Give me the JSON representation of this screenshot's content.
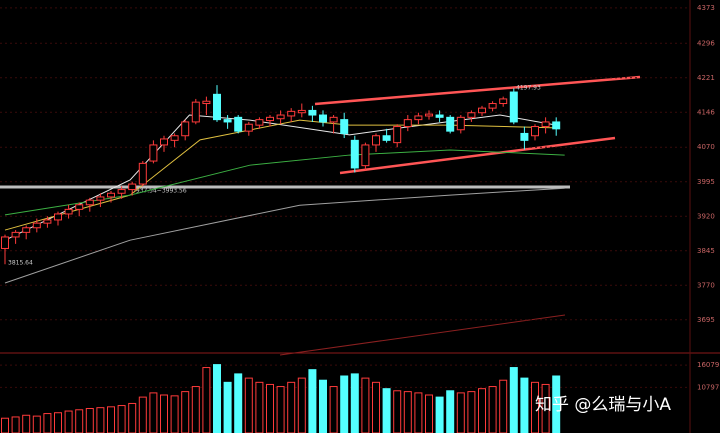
{
  "chart_data": {
    "type": "candlestick",
    "ylim": [
      3625,
      4390
    ],
    "yticks": [
      4373,
      4296,
      4221,
      4146,
      4070,
      3995,
      3920,
      3845,
      3770,
      3695
    ],
    "open": [
      3850,
      3875,
      3885,
      3895,
      3905,
      3912,
      3925,
      3935,
      3945,
      3955,
      3962,
      3970,
      3978,
      3990,
      4040,
      4075,
      4085,
      4095,
      4125,
      4165,
      4185,
      4130,
      4135,
      4105,
      4118,
      4128,
      4132,
      4138,
      4145,
      4150,
      4140,
      4125,
      4130,
      4085,
      4030,
      4075,
      4095,
      4080,
      4115,
      4130,
      4138,
      4140,
      4135,
      4108,
      4135,
      4145,
      4155,
      4165,
      4190,
      4100,
      4095,
      4115,
      4125
    ],
    "high": [
      3880,
      3890,
      3900,
      3915,
      3920,
      3930,
      3945,
      3950,
      3960,
      3970,
      3975,
      3985,
      3995,
      4040,
      4085,
      4095,
      4100,
      4130,
      4175,
      4180,
      4205,
      4140,
      4140,
      4125,
      4135,
      4140,
      4150,
      4155,
      4165,
      4160,
      4150,
      4140,
      4145,
      4095,
      4080,
      4100,
      4110,
      4120,
      4140,
      4145,
      4150,
      4150,
      4140,
      4140,
      4150,
      4160,
      4170,
      4180,
      4197.93,
      4115,
      4120,
      4135,
      4135
    ],
    "low": [
      3815.64,
      3860,
      3870,
      3885,
      3895,
      3900,
      3915,
      3920,
      3930,
      3940,
      3950,
      3958,
      3965,
      3985,
      4035,
      4060,
      4070,
      4085,
      4120,
      4140,
      4125,
      4110,
      4100,
      4095,
      4110,
      4115,
      4120,
      4125,
      4135,
      4125,
      4115,
      4100,
      4090,
      4015,
      4020,
      4060,
      4080,
      4070,
      4105,
      4120,
      4130,
      4125,
      4100,
      4100,
      4125,
      4138,
      4148,
      4158,
      4120,
      4065,
      4085,
      4100,
      4095
    ],
    "close": [
      3875,
      3885,
      3895,
      3905,
      3912,
      3925,
      3935,
      3945,
      3955,
      3962,
      3970,
      3978,
      3990,
      4035,
      4075,
      4088,
      4095,
      4125,
      4168,
      4170,
      4130,
      4125,
      4105,
      4120,
      4130,
      4135,
      4140,
      4148,
      4150,
      4140,
      4125,
      4135,
      4100,
      4025,
      4075,
      4095,
      4085,
      4115,
      4130,
      4138,
      4142,
      4135,
      4105,
      4135,
      4145,
      4155,
      4165,
      4175,
      4125,
      4085,
      4115,
      4125,
      4110
    ],
    "up_color": "#ff3b3b",
    "down_color": "#54ffff",
    "ma_lines": [
      {
        "color": "#e8e8e8",
        "x": [
          0,
          11.8,
          17.4,
          23.1,
          32.5,
          37.3,
          46.7,
          52
        ],
        "values": [
          3868,
          3999,
          4140,
          4129,
          4097,
          4112,
          4140,
          4118
        ]
      },
      {
        "color": "#e0c040",
        "x": [
          0,
          11.8,
          18.4,
          27.8,
          32.5,
          42,
          52
        ],
        "values": [
          3890,
          3966,
          4086,
          4129,
          4118,
          4118,
          4112
        ]
      },
      {
        "color": "#3cb043",
        "x": [
          0,
          11.8,
          23.1,
          32.5,
          42,
          52.8
        ],
        "values": [
          3923,
          3966,
          4031,
          4053,
          4064,
          4053
        ]
      },
      {
        "color": "#a0a0a0",
        "x": [
          0,
          11.8,
          27.8,
          42,
          52.8
        ],
        "values": [
          3775,
          3868,
          3944,
          3966,
          3981
        ]
      }
    ],
    "annotations": [
      "3815.64",
      "3937.54~3993.56",
      "4197.93"
    ],
    "volume": {
      "ylim": [
        0,
        18000
      ],
      "yticks": [
        16079,
        10797
      ],
      "values": [
        3500,
        3800,
        4200,
        4000,
        4600,
        4800,
        5200,
        5500,
        5800,
        6000,
        6200,
        6500,
        7000,
        8500,
        9500,
        9000,
        8800,
        9800,
        11000,
        15500,
        16200,
        12000,
        14000,
        13000,
        12000,
        11500,
        11000,
        12000,
        13000,
        15000,
        12500,
        11000,
        13500,
        14000,
        13000,
        12000,
        10500,
        10000,
        9800,
        9500,
        9000,
        8500,
        10000,
        9500,
        9800,
        10500,
        11000,
        12500,
        15500,
        13000,
        12000,
        11500,
        13500
      ]
    },
    "watermark": "知乎 @么瑞与小A"
  }
}
